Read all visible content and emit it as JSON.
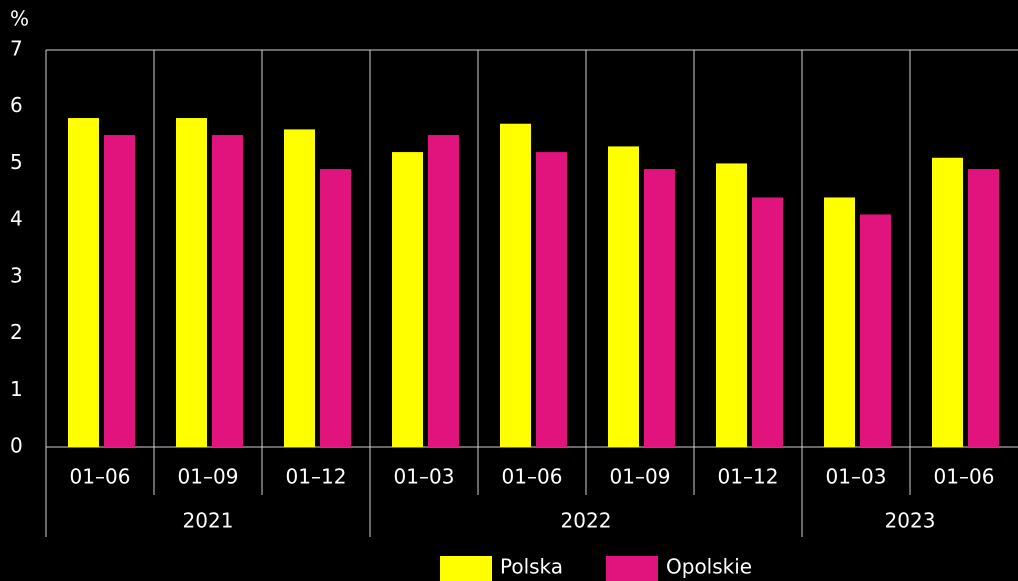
{
  "chart_data": {
    "type": "bar",
    "ylabel": "%",
    "groups": [
      {
        "name": "2021",
        "categories": [
          "01–06",
          "01–09",
          "01–12"
        ]
      },
      {
        "name": "2022",
        "categories": [
          "01–03",
          "01–06",
          "01–09",
          "01–12"
        ]
      },
      {
        "name": "2023",
        "categories": [
          "01–03",
          "01–06"
        ]
      }
    ],
    "series": [
      {
        "name": "Polska",
        "color": "#ffff00",
        "values": [
          5.8,
          5.8,
          5.6,
          5.2,
          5.7,
          5.3,
          5.0,
          4.4,
          5.1
        ]
      },
      {
        "name": "Opolskie",
        "color": "#e0147c",
        "values": [
          5.5,
          5.5,
          4.9,
          5.5,
          5.2,
          4.9,
          4.4,
          4.1,
          4.9
        ]
      }
    ],
    "ylim": [
      0,
      7
    ],
    "yticks": [
      0,
      1,
      2,
      3,
      4,
      5,
      6,
      7
    ],
    "grid": false
  }
}
